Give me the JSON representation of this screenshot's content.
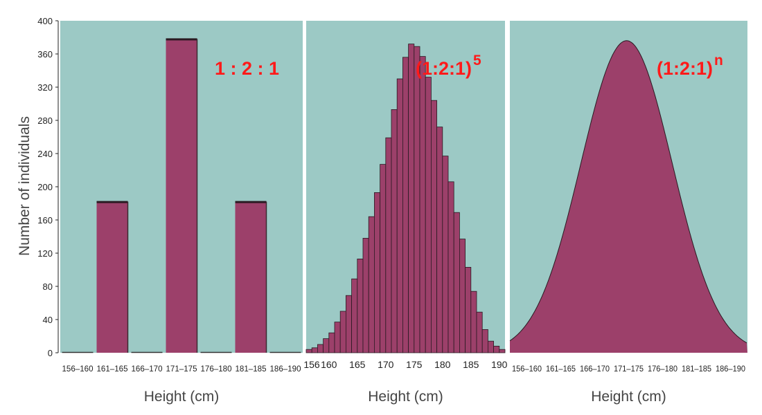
{
  "colors": {
    "panel_bg": "#9cc9c5",
    "bar_fill": "#9c406a",
    "bar_cap": "#2a1a22",
    "label_red": "#ff1a1a"
  },
  "y_axis": {
    "label": "Number of individuals",
    "ticks": [
      "0",
      "40",
      "80",
      "120",
      "160",
      "200",
      "240",
      "280",
      "320",
      "360",
      "400"
    ]
  },
  "chart_data": [
    {
      "type": "bar",
      "annotation": "1 : 2 : 1",
      "xlabel": "Height (cm)",
      "ylabel": "Number of individuals",
      "ylim": [
        0,
        400
      ],
      "categories": [
        "156–160",
        "161–165",
        "166–170",
        "171–175",
        "176–180",
        "181–185",
        "186–190"
      ],
      "values": [
        0,
        182,
        0,
        378,
        0,
        182,
        0
      ]
    },
    {
      "type": "bar",
      "annotation": "(1:2:1)",
      "annotation_sup": "5",
      "xlabel": "Height (cm)",
      "ylim": [
        0,
        400
      ],
      "xlim": [
        156,
        191
      ],
      "x_ticks": [
        "156",
        "160",
        "165",
        "170",
        "175",
        "180",
        "185",
        "190"
      ],
      "x_tick_values": [
        156,
        160,
        165,
        170,
        175,
        180,
        185,
        190
      ],
      "bin_width": 1,
      "x": [
        156,
        157,
        158,
        159,
        160,
        161,
        162,
        163,
        164,
        165,
        166,
        167,
        168,
        169,
        170,
        171,
        172,
        173,
        174,
        175,
        176,
        177,
        178,
        179,
        180,
        181,
        182,
        183,
        184,
        185,
        186,
        187,
        188,
        189,
        190
      ],
      "values": [
        4,
        6,
        10,
        17,
        24,
        37,
        50,
        69,
        89,
        113,
        138,
        164,
        193,
        227,
        259,
        293,
        330,
        356,
        372,
        369,
        357,
        332,
        304,
        272,
        237,
        206,
        169,
        137,
        103,
        74,
        49,
        28,
        14,
        8,
        4
      ]
    },
    {
      "type": "area",
      "annotation": "(1:2:1)",
      "annotation_sup": "n",
      "xlabel": "Height (cm)",
      "ylim": [
        0,
        400
      ],
      "categories": [
        "156–160",
        "161–165",
        "166–170",
        "171–175",
        "176–180",
        "181–185",
        "186–190"
      ],
      "curve": "normal",
      "peak_value": 376,
      "peak_category": "171–175"
    }
  ]
}
